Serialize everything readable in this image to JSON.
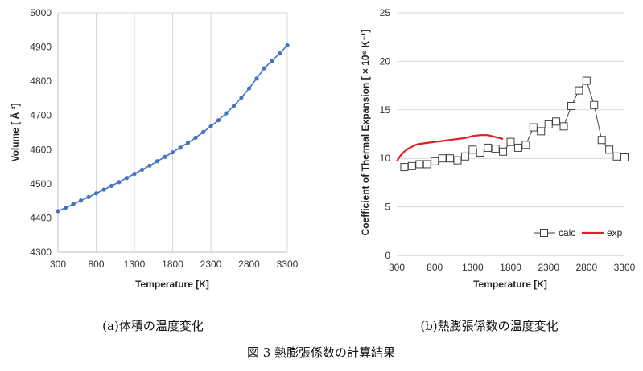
{
  "figure": {
    "caption_a": "(a)体積の温度変化",
    "caption_b": "(b)熱膨張係数の温度変化",
    "caption": "図 3  熱膨張係数の計算結果"
  },
  "colors": {
    "volume_series": "#4472c4",
    "calc_series": "#404040",
    "exp_series": "#e02020",
    "grid": "#d9d9d9",
    "axis": "#bfbfbf"
  },
  "chart_data": [
    {
      "type": "line",
      "title": "",
      "xlabel": "Temperature [K]",
      "ylabel": "Volume [ Å ³]",
      "xlim": [
        300,
        3300
      ],
      "ylim": [
        4300,
        5000
      ],
      "xticks": [
        "300",
        "800",
        "1300",
        "1800",
        "2300",
        "2800",
        "3300"
      ],
      "yticks": [
        "4300",
        "4400",
        "4500",
        "4600",
        "4700",
        "4800",
        "4900",
        "5000"
      ],
      "grid": "vertical",
      "series": [
        {
          "name": "",
          "marker": "circle",
          "x": [
            300,
            400,
            500,
            600,
            700,
            800,
            900,
            1000,
            1100,
            1200,
            1300,
            1400,
            1500,
            1600,
            1700,
            1800,
            1900,
            2000,
            2100,
            2200,
            2300,
            2400,
            2500,
            2600,
            2700,
            2800,
            2900,
            3000,
            3100,
            3200,
            3300
          ],
          "y": [
            4420,
            4430,
            4440,
            4451,
            4461,
            4472,
            4483,
            4494,
            4505,
            4517,
            4529,
            4541,
            4553,
            4566,
            4579,
            4592,
            4606,
            4620,
            4635,
            4651,
            4668,
            4686,
            4706,
            4728,
            4752,
            4779,
            4808,
            4838,
            4860,
            4881,
            4905
          ]
        }
      ]
    },
    {
      "type": "line",
      "title": "",
      "xlabel": "Temperature [K]",
      "ylabel": "Coefficient of Thermal Expansion [ × 10⁶ K⁻¹]",
      "xlim": [
        300,
        3300
      ],
      "ylim": [
        0,
        25
      ],
      "xticks": [
        "300",
        "800",
        "1300",
        "1800",
        "2300",
        "2800",
        "3300"
      ],
      "yticks": [
        "0",
        "5",
        "10",
        "15",
        "20",
        "25"
      ],
      "grid": "horizontal",
      "legend": "bottom-right",
      "series": [
        {
          "name": "calc",
          "marker": "square",
          "x": [
            400,
            500,
            600,
            700,
            800,
            900,
            1000,
            1100,
            1200,
            1300,
            1400,
            1500,
            1600,
            1700,
            1800,
            1900,
            2000,
            2100,
            2200,
            2300,
            2400,
            2500,
            2600,
            2700,
            2800,
            2900,
            3000,
            3100,
            3200,
            3300
          ],
          "y": [
            9.1,
            9.2,
            9.4,
            9.4,
            9.7,
            10.0,
            10.0,
            9.8,
            10.2,
            10.9,
            10.6,
            11.1,
            11.0,
            10.7,
            11.7,
            11.1,
            11.4,
            13.2,
            12.8,
            13.5,
            13.8,
            13.3,
            15.4,
            17.0,
            18.0,
            15.5,
            11.9,
            10.9,
            10.2,
            10.1
          ]
        },
        {
          "name": "exp",
          "marker": "none",
          "x": [
            300,
            350,
            400,
            450,
            500,
            550,
            600,
            700,
            800,
            900,
            1000,
            1100,
            1200,
            1300,
            1400,
            1500,
            1600,
            1700
          ],
          "y": [
            9.7,
            10.3,
            10.7,
            11.0,
            11.2,
            11.4,
            11.5,
            11.6,
            11.7,
            11.8,
            11.9,
            12.0,
            12.1,
            12.3,
            12.4,
            12.4,
            12.2,
            12.0
          ]
        }
      ]
    }
  ]
}
